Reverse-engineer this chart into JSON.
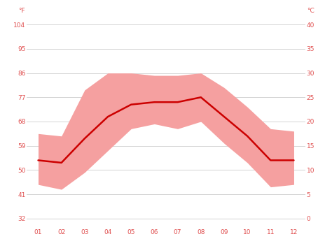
{
  "months": [
    1,
    2,
    3,
    4,
    5,
    6,
    7,
    8,
    9,
    10,
    11,
    12
  ],
  "month_labels": [
    "01",
    "02",
    "03",
    "04",
    "05",
    "06",
    "07",
    "08",
    "09",
    "10",
    "11",
    "12"
  ],
  "mean_c": [
    12.0,
    11.5,
    16.5,
    21.0,
    23.5,
    24.0,
    24.0,
    25.0,
    21.0,
    17.0,
    12.0,
    12.0
  ],
  "max_c": [
    17.5,
    17.0,
    26.5,
    30.0,
    30.0,
    29.5,
    29.5,
    30.0,
    27.0,
    23.0,
    18.5,
    18.0
  ],
  "min_c": [
    7.0,
    6.0,
    9.5,
    14.0,
    18.5,
    19.5,
    18.5,
    20.0,
    15.5,
    11.5,
    6.5,
    7.0
  ],
  "line_color": "#cc0000",
  "fill_color": "#f5a0a0",
  "background_color": "#ffffff",
  "grid_color": "#cccccc",
  "y_ticks_c": [
    0,
    5,
    10,
    15,
    20,
    25,
    30,
    35,
    40
  ],
  "y_ticks_f": [
    32,
    41,
    50,
    59,
    68,
    77,
    86,
    95,
    104
  ],
  "ylim_c": [
    -2,
    42
  ],
  "tick_label_color": "#e05050",
  "figsize": [
    4.74,
    3.55
  ],
  "dpi": 100
}
